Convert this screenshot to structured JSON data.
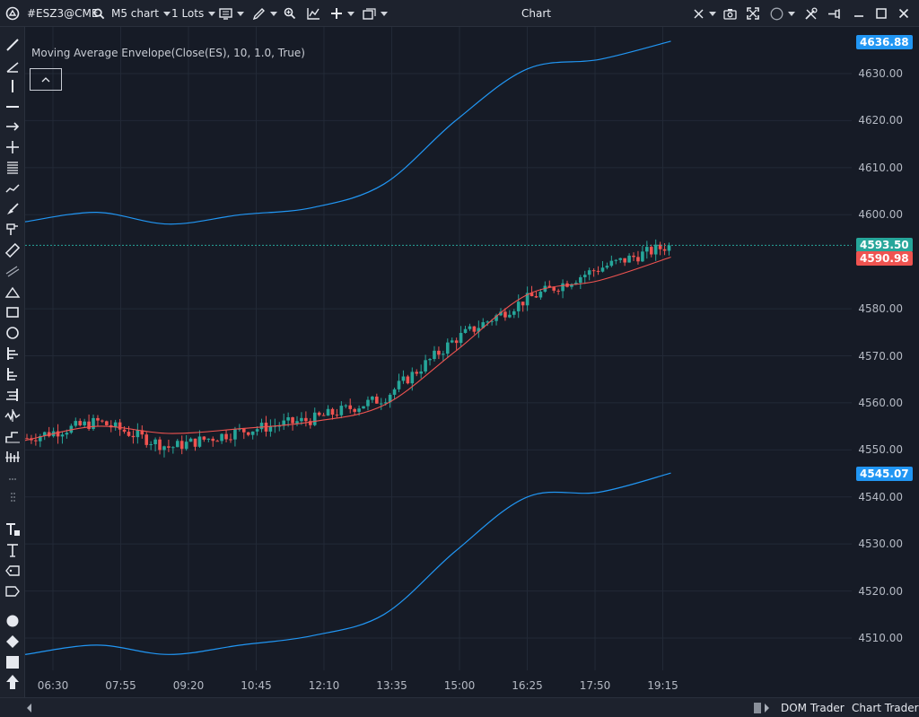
{
  "toolbar": {
    "symbol": "#ESZ3@CME",
    "timeframe": "M5 chart",
    "lots": "1 Lots",
    "title": "Chart"
  },
  "indicator": {
    "legend": "Moving Average Envelope(Close(ES), 10, 1.0, True)"
  },
  "price_tags": {
    "upper_band": "4636.88",
    "last_price": "4593.50",
    "ma_value": "4590.98",
    "lower_band": "4545.07"
  },
  "y_axis_labels": [
    "4630.00",
    "4620.00",
    "4610.00",
    "4600.00",
    "4580.00",
    "4570.00",
    "4560.00",
    "4550.00",
    "4540.00",
    "4530.00",
    "4520.00",
    "4510.00"
  ],
  "x_axis_labels": [
    "06:30",
    "07:55",
    "09:20",
    "10:45",
    "12:10",
    "13:35",
    "15:00",
    "16:25",
    "17:50",
    "19:15"
  ],
  "bottom_bar": {
    "dom_trader": "DOM Trader",
    "chart_trader": "Chart Trader"
  },
  "colors": {
    "background": "#161b26",
    "up_candle": "#26a69a",
    "down_candle": "#ef5350",
    "moving_average": "#ef5350",
    "envelope": "#2196f3",
    "last_price_line": "#26a69a"
  },
  "chart_data": {
    "type": "candlestick",
    "y_range": [
      4503,
      4641
    ],
    "times": [
      "06:30",
      "07:55",
      "09:20",
      "10:45",
      "12:10",
      "13:35",
      "15:00",
      "16:25",
      "17:50",
      "19:15"
    ],
    "close": [
      4552.5,
      4556.0,
      4550.5,
      4554.0,
      4556.5,
      4561.0,
      4573.5,
      4582.0,
      4588.5,
      4593.5
    ],
    "moving_average": [
      4552.0,
      4555.0,
      4553.5,
      4554.5,
      4556.0,
      4559.5,
      4571.0,
      4583.0,
      4586.0,
      4590.98
    ],
    "upper_envelope": [
      4598.5,
      4600.5,
      4598.0,
      4600.0,
      4601.5,
      4606.5,
      4620.0,
      4631.0,
      4633.0,
      4636.88
    ],
    "lower_envelope": [
      4506.5,
      4508.5,
      4506.5,
      4508.5,
      4510.5,
      4515.0,
      4528.5,
      4540.0,
      4541.0,
      4545.07
    ],
    "last_price": 4593.5
  }
}
